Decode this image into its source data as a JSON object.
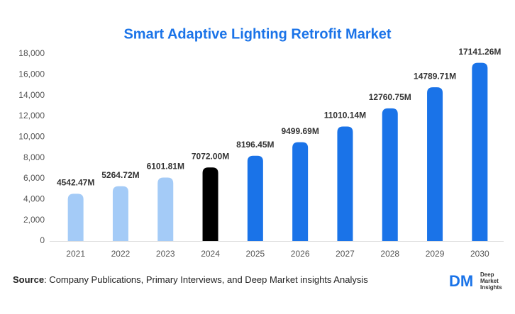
{
  "chart_data": {
    "type": "bar",
    "title": "Smart Adaptive Lighting Retrofit Market",
    "categories": [
      "2021",
      "2022",
      "2023",
      "2024",
      "2025",
      "2026",
      "2027",
      "2028",
      "2029",
      "2030"
    ],
    "values": [
      4542.47,
      5264.72,
      6101.81,
      7072.0,
      8196.45,
      9499.69,
      11010.14,
      12760.75,
      14789.71,
      17141.26
    ],
    "value_labels": [
      "4542.47M",
      "5264.72M",
      "6101.81M",
      "7072.00M",
      "8196.45M",
      "9499.69M",
      "11010.14M",
      "12760.75M",
      "14789.71M",
      "17141.26M"
    ],
    "colors": [
      "#a4cbf7",
      "#a4cbf7",
      "#a4cbf7",
      "#000000",
      "#1a73e8",
      "#1a73e8",
      "#1a73e8",
      "#1a73e8",
      "#1a73e8",
      "#1a73e8"
    ],
    "ylim": [
      0,
      18000
    ],
    "yticks": [
      0,
      {
        "value": 2000,
        "label": "2,000"
      },
      {
        "value": 4000,
        "label": "4,000"
      },
      {
        "value": 6000,
        "label": "6,000"
      },
      {
        "value": 8000,
        "label": "8,000"
      },
      {
        "value": 10000,
        "label": "10,000"
      },
      {
        "value": 12000,
        "label": "12,000"
      },
      {
        "value": 14000,
        "label": "14,000"
      },
      {
        "value": 16000,
        "label": "16,000"
      },
      {
        "value": 18000,
        "label": "18,000"
      }
    ],
    "grid": false
  },
  "footer": {
    "source_label": "Source",
    "source_text": ": Company Publications, Primary Interviews, and Deep Market insights Analysis",
    "logo_mark": "DM",
    "logo_lines": [
      "Deep",
      "Market",
      "Insights"
    ]
  }
}
